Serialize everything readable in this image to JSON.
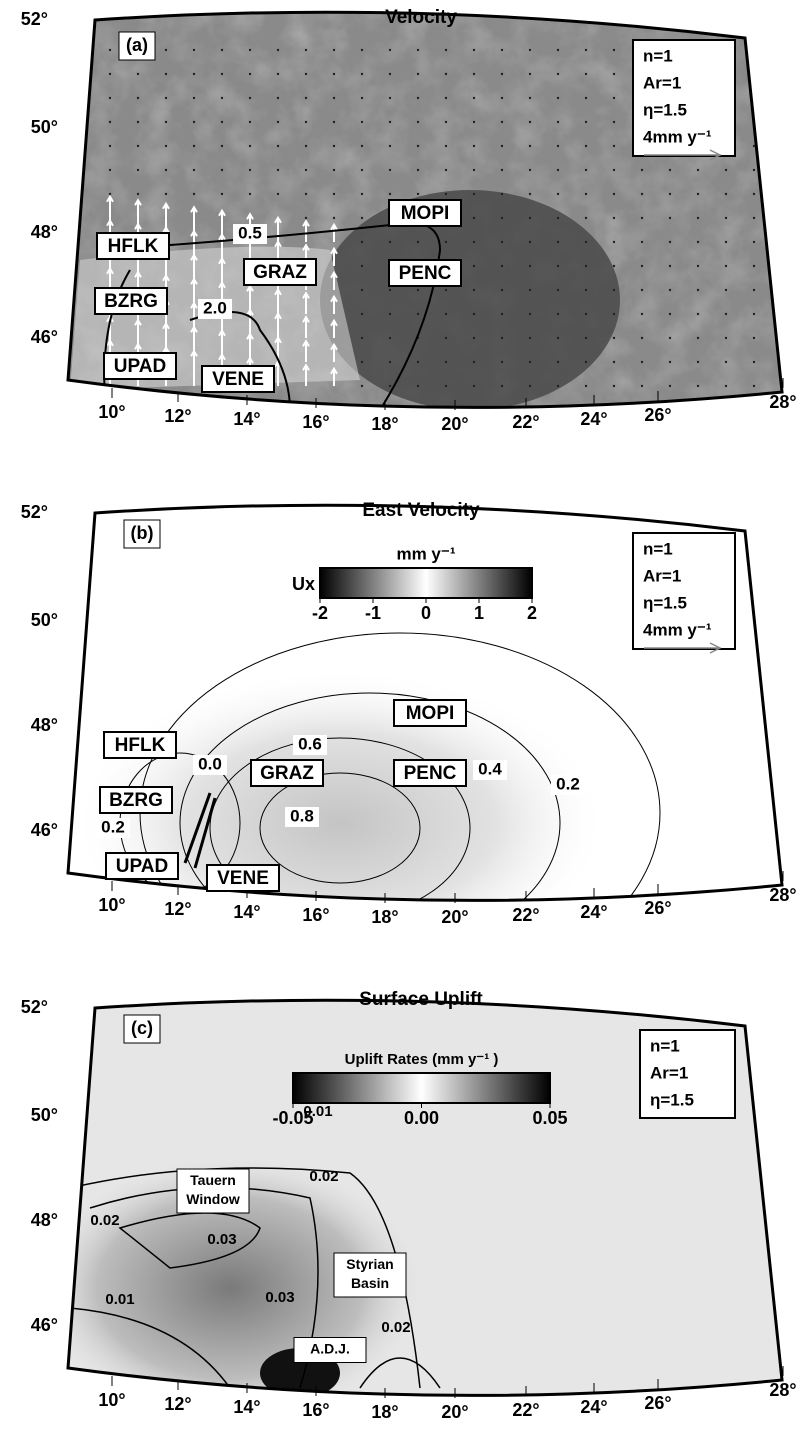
{
  "lon_ticks": [
    "10°",
    "12°",
    "14°",
    "16°",
    "18°",
    "20°",
    "22°",
    "24°",
    "26°",
    "28°"
  ],
  "lat_ticks": [
    "52°",
    "50°",
    "48°",
    "46°"
  ],
  "panels": [
    {
      "label": "(a)",
      "title": "Velocity",
      "legend": [
        "n=1",
        "Ar=1",
        "η=1.5",
        "4mm y⁻¹"
      ],
      "stations": [
        "HFLK",
        "BZRG",
        "UPAD",
        "VENE",
        "GRAZ",
        "MOPI",
        "PENC"
      ],
      "contour_labels": [
        "0.5",
        "2.0"
      ]
    },
    {
      "label": "(b)",
      "title": "East Velocity",
      "legend": [
        "n=1",
        "Ar=1",
        "η=1.5",
        "4mm y⁻¹"
      ],
      "colorbar": {
        "name": "Ux",
        "title": "mm y⁻¹",
        "ticks": [
          "-2",
          "-1",
          "0",
          "1",
          "2"
        ]
      },
      "stations": [
        "HFLK",
        "BZRG",
        "UPAD",
        "VENE",
        "GRAZ",
        "MOPI",
        "PENC"
      ],
      "contour_labels": [
        "0.0",
        "0.2",
        "0.6",
        "0.4",
        "0.8",
        "0.2"
      ]
    },
    {
      "label": "(c)",
      "title": "Surface Uplift",
      "legend": [
        "n=1",
        "Ar=1",
        "η=1.5"
      ],
      "colorbar": {
        "title": "Uplift Rates (mm y⁻¹ )",
        "ticks": [
          "-0.05",
          "0.00",
          "0.05"
        ]
      },
      "places": [
        [
          "Tauern",
          "Window"
        ],
        [
          "Styrian",
          "Basin"
        ],
        [
          "A.D.J."
        ]
      ],
      "contour_labels": [
        "0.01",
        "0.02",
        "0.02",
        "0.03",
        "0.03",
        "0.01",
        "0.02"
      ]
    }
  ]
}
